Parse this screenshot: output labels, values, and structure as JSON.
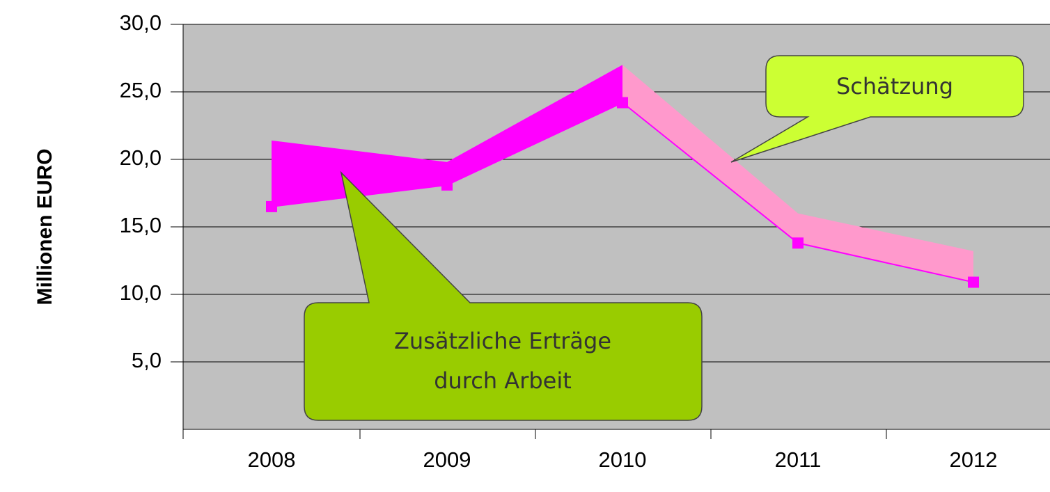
{
  "chart_data": {
    "type": "line",
    "y_label": "Millionen EURO",
    "categories": [
      "2008",
      "2009",
      "2010",
      "2011",
      "2012"
    ],
    "series": [
      {
        "color": "#ff00ff",
        "values": [
          16.5,
          18.1,
          24.2,
          13.8,
          10.9
        ]
      },
      {
        "color": "#ff00ff",
        "segment_colors": [
          "#ff00ff",
          "#ff00ff",
          "#ff99cc",
          "#ff99cc"
        ],
        "values": [
          21.4,
          19.8,
          27.0,
          16.0,
          13.2
        ]
      }
    ],
    "ylim": [
      0,
      30
    ],
    "yticks": [
      {
        "value": 5,
        "label": "5,0"
      },
      {
        "value": 10,
        "label": "10,0"
      },
      {
        "value": 15,
        "label": "15,0"
      },
      {
        "value": 20,
        "label": "20,0"
      },
      {
        "value": 25,
        "label": "25,0"
      },
      {
        "value": 30,
        "label": "30,0"
      }
    ],
    "grid": true,
    "plot_background": "#c0c0c0",
    "annotations": [
      {
        "lines": [
          "Schätzung"
        ]
      },
      {
        "lines": [
          "Zusätzliche Erträge",
          "durch Arbeit"
        ]
      }
    ]
  }
}
